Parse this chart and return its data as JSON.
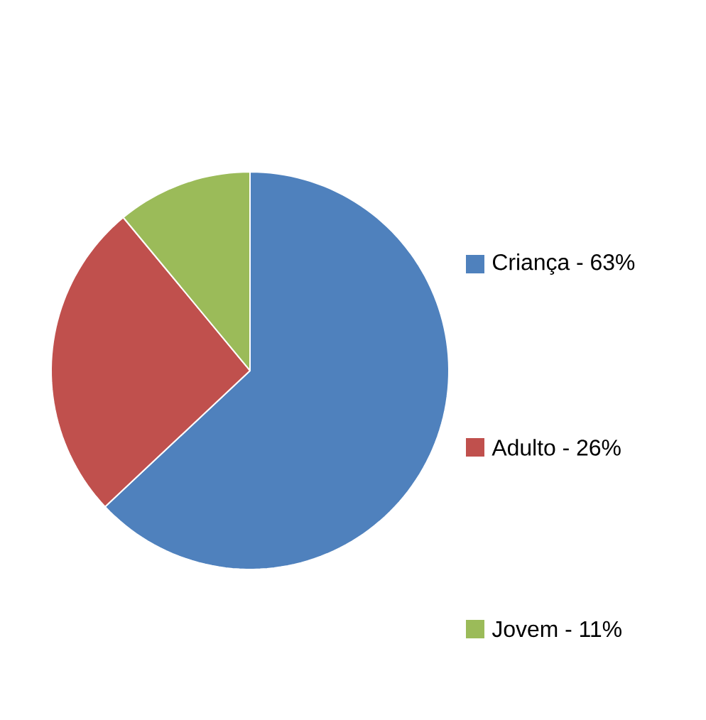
{
  "chart_data": {
    "type": "pie",
    "categories": [
      "Criança - 63%",
      "Adulto - 26%",
      "Jovem - 11%"
    ],
    "values": [
      63,
      26,
      11
    ],
    "colors": [
      "#4f81bd",
      "#c0504d",
      "#9bbb59"
    ],
    "legend": "right"
  }
}
